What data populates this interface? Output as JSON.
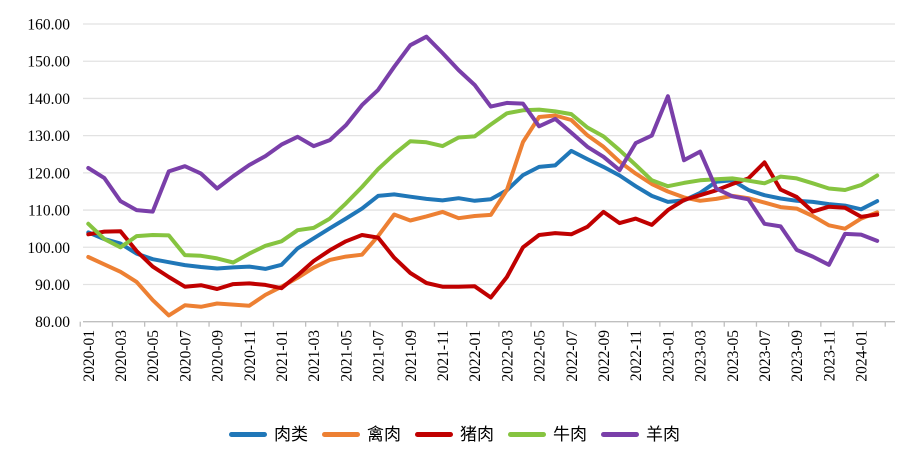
{
  "chart_data": {
    "type": "line",
    "title": "",
    "xlabel": "",
    "ylabel": "",
    "grid": "horizontal",
    "legend_position": "bottom-center",
    "y_axis": {
      "min": 80,
      "max": 160,
      "step": 10,
      "tick_labels": [
        "80.00",
        "90.00",
        "100.00",
        "110.00",
        "120.00",
        "130.00",
        "140.00",
        "150.00",
        "160.00"
      ]
    },
    "x_axis": {
      "months": [
        "2020-01",
        "2020-02",
        "2020-03",
        "2020-04",
        "2020-05",
        "2020-06",
        "2020-07",
        "2020-08",
        "2020-09",
        "2020-10",
        "2020-11",
        "2020-12",
        "2021-01",
        "2021-02",
        "2021-03",
        "2021-04",
        "2021-05",
        "2021-06",
        "2021-07",
        "2021-08",
        "2021-09",
        "2021-10",
        "2021-11",
        "2021-12",
        "2022-01",
        "2022-02",
        "2022-03",
        "2022-04",
        "2022-05",
        "2022-06",
        "2022-07",
        "2022-08",
        "2022-09",
        "2022-10",
        "2022-11",
        "2022-12",
        "2023-01",
        "2023-02",
        "2023-03",
        "2023-04",
        "2023-05",
        "2023-06",
        "2023-07",
        "2023-08",
        "2023-09",
        "2023-10",
        "2023-11",
        "2023-12",
        "2024-01",
        "2024-02"
      ],
      "visible_tick_labels": [
        "2020-01",
        "2020-03",
        "2020-05",
        "2020-07",
        "2020-09",
        "2020-11",
        "2021-01",
        "2021-03",
        "2021-05",
        "2021-07",
        "2021-09",
        "2021-11",
        "2022-01",
        "2022-03",
        "2022-05",
        "2022-07",
        "2022-09",
        "2022-11",
        "2023-01",
        "2023-03",
        "2023-05",
        "2023-07",
        "2023-09",
        "2023-11",
        "2024-01"
      ]
    },
    "colors": {
      "gridline": "#E2E2E2",
      "axis": "#BFBFBF",
      "text": "#000000"
    },
    "series": [
      {
        "id": "meat",
        "name": "肉类",
        "color": "#2077B8",
        "values": [
          104.0,
          102.2,
          101.0,
          98.3,
          96.8,
          96.0,
          95.2,
          94.7,
          94.3,
          94.6,
          94.8,
          94.2,
          95.3,
          99.7,
          102.4,
          105.1,
          107.7,
          110.4,
          113.8,
          114.2,
          113.6,
          113.0,
          112.6,
          113.2,
          112.5,
          112.9,
          115.3,
          119.4,
          121.6,
          122.0,
          125.9,
          123.7,
          121.6,
          119.3,
          116.4,
          113.8,
          112.2,
          112.6,
          114.6,
          117.6,
          118.0,
          115.4,
          114.0,
          113.1,
          112.5,
          112.2,
          111.6,
          111.2,
          110.2,
          112.4
        ]
      },
      {
        "id": "poultry",
        "name": "禽肉",
        "color": "#ED8033",
        "values": [
          97.4,
          95.4,
          93.4,
          90.7,
          85.8,
          81.7,
          84.4,
          84.0,
          84.9,
          84.6,
          84.3,
          87.2,
          89.4,
          91.8,
          94.5,
          96.6,
          97.5,
          98.0,
          103.0,
          108.8,
          107.2,
          108.3,
          109.5,
          107.8,
          108.4,
          108.7,
          115.4,
          128.3,
          135.0,
          135.4,
          134.2,
          130.1,
          127.0,
          123.0,
          119.8,
          117.0,
          115.0,
          113.4,
          112.5,
          113.0,
          113.8,
          113.2,
          112.0,
          110.8,
          110.4,
          108.4,
          105.9,
          105.0,
          107.7,
          109.4
        ]
      },
      {
        "id": "pork",
        "name": "猪肉",
        "color": "#C00000",
        "values": [
          103.5,
          104.2,
          104.3,
          99.0,
          94.8,
          92.0,
          89.4,
          89.8,
          88.8,
          90.1,
          90.3,
          89.9,
          89.0,
          92.5,
          96.3,
          99.2,
          101.6,
          103.3,
          102.6,
          97.2,
          93.1,
          90.4,
          89.4,
          89.4,
          89.5,
          86.5,
          92.0,
          100.0,
          103.3,
          103.8,
          103.5,
          105.5,
          109.5,
          106.5,
          107.7,
          106.0,
          110.0,
          112.7,
          114.0,
          115.3,
          117.0,
          118.5,
          122.8,
          115.5,
          113.5,
          109.6,
          110.9,
          110.6,
          108.2,
          108.8
        ]
      },
      {
        "id": "beef",
        "name": "牛肉",
        "color": "#86C440",
        "values": [
          106.3,
          102.2,
          100.0,
          103.0,
          103.3,
          103.2,
          97.9,
          97.7,
          97.0,
          95.9,
          98.3,
          100.4,
          101.6,
          104.6,
          105.2,
          107.7,
          111.8,
          116.2,
          121.0,
          125.0,
          128.5,
          128.2,
          127.2,
          129.5,
          129.8,
          133.0,
          136.0,
          136.8,
          137.0,
          136.5,
          135.8,
          132.2,
          129.8,
          126.1,
          122.1,
          118.0,
          116.4,
          117.3,
          118.0,
          118.3,
          118.5,
          117.9,
          117.2,
          119.0,
          118.5,
          117.2,
          115.8,
          115.4,
          116.7,
          119.3
        ]
      },
      {
        "id": "mutton",
        "name": "羊肉",
        "color": "#7A3FA9",
        "values": [
          121.3,
          118.6,
          112.4,
          110.0,
          109.6,
          120.4,
          121.8,
          119.8,
          115.8,
          119.1,
          122.1,
          124.5,
          127.6,
          129.7,
          127.2,
          128.8,
          132.8,
          138.2,
          142.3,
          148.5,
          154.3,
          156.6,
          152.2,
          147.6,
          143.6,
          137.8,
          138.8,
          138.6,
          132.5,
          134.5,
          130.8,
          127.0,
          124.3,
          120.7,
          128.0,
          130.0,
          140.6,
          123.4,
          125.7,
          115.8,
          113.7,
          112.9,
          106.3,
          105.6,
          99.3,
          97.5,
          95.3,
          103.6,
          103.4,
          101.7
        ]
      }
    ]
  }
}
